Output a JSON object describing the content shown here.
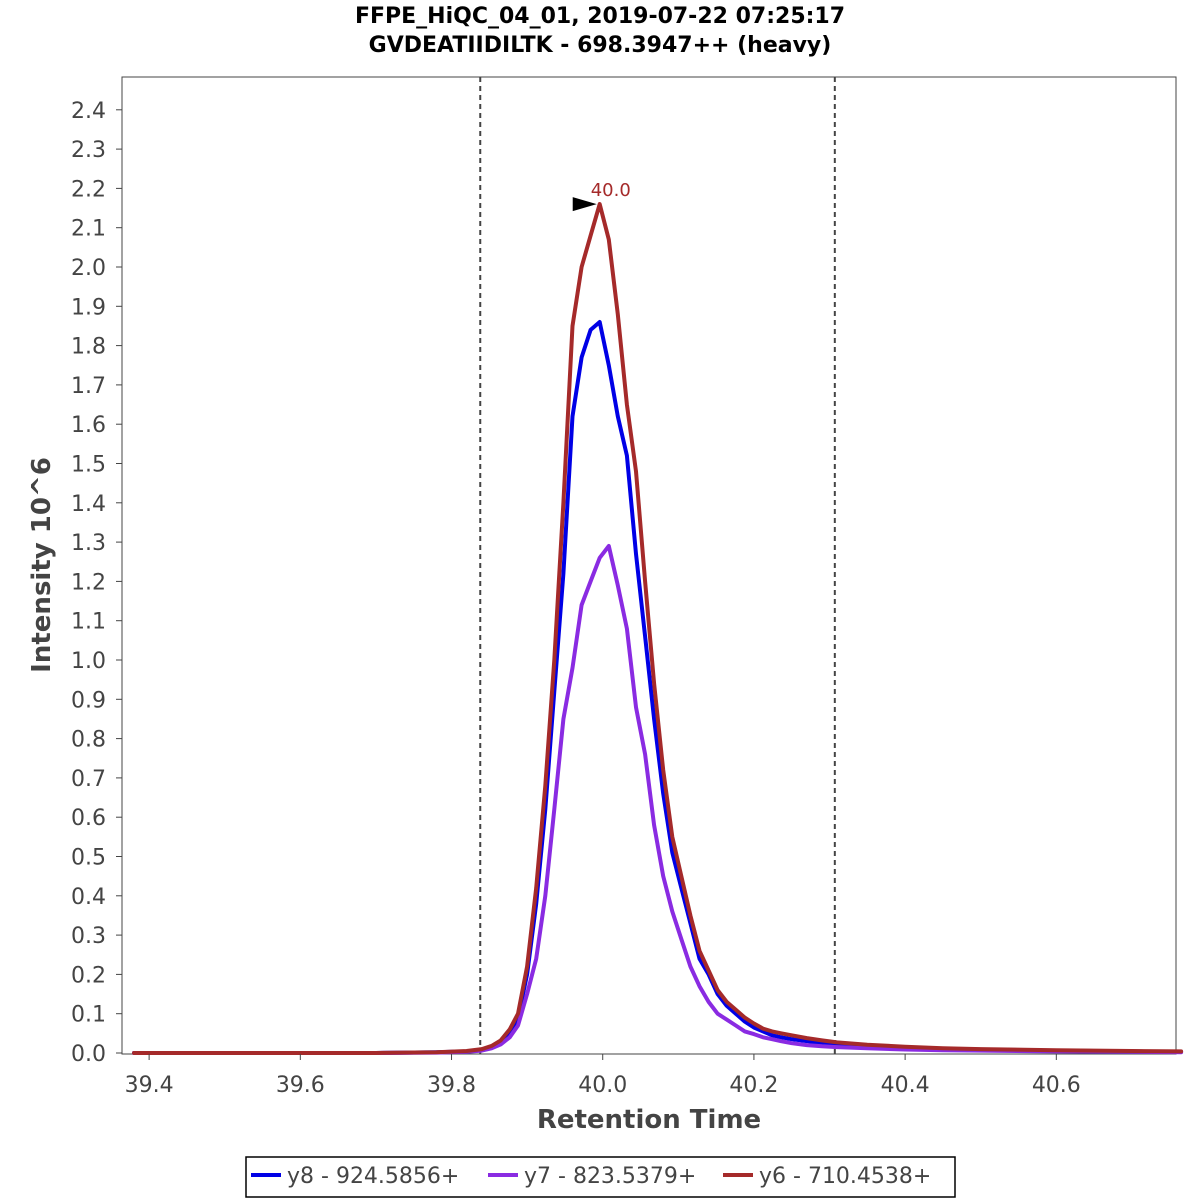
{
  "chart_data": {
    "type": "line",
    "title": "FFPE_HiQC_04_01, 2019-07-22 07:25:17",
    "subtitle": "GVDEATIIDILTK - 698.3947++ (heavy)",
    "xlabel": "Retention Time",
    "ylabel": "Intensity 10^6",
    "xlim": [
      39.38,
      40.765
    ],
    "ylim": [
      0.0,
      2.5
    ],
    "x_ticks": [
      "39.4",
      "39.6",
      "39.8",
      "40.0",
      "40.2",
      "40.4",
      "40.6"
    ],
    "x_tick_values": [
      39.4,
      39.6,
      39.8,
      40.0,
      40.2,
      40.4,
      40.6
    ],
    "y_ticks": [
      "0.0",
      "0.1",
      "0.2",
      "0.3",
      "0.4",
      "0.5",
      "0.6",
      "0.7",
      "0.8",
      "0.9",
      "1.0",
      "1.1",
      "1.2",
      "1.3",
      "1.4",
      "1.5",
      "1.6",
      "1.7",
      "1.8",
      "1.9",
      "2.0",
      "2.1",
      "2.2",
      "2.3",
      "2.4"
    ],
    "y_tick_values": [
      0.0,
      0.1,
      0.2,
      0.3,
      0.4,
      0.5,
      0.6,
      0.7,
      0.8,
      0.9,
      1.0,
      1.1,
      1.2,
      1.3,
      1.4,
      1.5,
      1.6,
      1.7,
      1.8,
      1.9,
      2.0,
      2.1,
      2.2,
      2.3,
      2.4
    ],
    "grid": false,
    "legend_position": "bottom",
    "boundaries": [
      39.838,
      40.307
    ],
    "annotation": {
      "text": "40.0",
      "x": 40.0,
      "y": 2.16,
      "color": "#a52a2a"
    },
    "series": [
      {
        "name": "y8 - 924.5856+",
        "color": "#0000e6",
        "x": [
          39.38,
          39.5,
          39.6,
          39.7,
          39.78,
          39.82,
          39.84,
          39.853,
          39.865,
          39.877,
          39.888,
          39.9,
          39.912,
          39.924,
          39.936,
          39.948,
          39.96,
          39.972,
          39.984,
          39.996,
          40.008,
          40.02,
          40.032,
          40.044,
          40.056,
          40.068,
          40.08,
          40.092,
          40.104,
          40.116,
          40.128,
          40.14,
          40.152,
          40.164,
          40.176,
          40.188,
          40.2,
          40.212,
          40.224,
          40.236,
          40.25,
          40.27,
          40.29,
          40.31,
          40.35,
          40.4,
          40.45,
          40.5,
          40.6,
          40.7,
          40.765
        ],
        "y": [
          0.0,
          0.0,
          0.0,
          0.0,
          0.002,
          0.004,
          0.008,
          0.015,
          0.028,
          0.05,
          0.09,
          0.2,
          0.38,
          0.62,
          0.92,
          1.22,
          1.62,
          1.77,
          1.84,
          1.86,
          1.75,
          1.62,
          1.52,
          1.27,
          1.06,
          0.85,
          0.66,
          0.51,
          0.42,
          0.33,
          0.24,
          0.2,
          0.15,
          0.12,
          0.1,
          0.08,
          0.065,
          0.055,
          0.045,
          0.04,
          0.035,
          0.03,
          0.025,
          0.022,
          0.018,
          0.014,
          0.011,
          0.009,
          0.006,
          0.004,
          0.003
        ]
      },
      {
        "name": "y7 - 823.5379+",
        "color": "#8a2be2",
        "x": [
          39.38,
          39.5,
          39.6,
          39.7,
          39.78,
          39.82,
          39.84,
          39.853,
          39.865,
          39.877,
          39.888,
          39.9,
          39.912,
          39.924,
          39.936,
          39.948,
          39.96,
          39.972,
          39.984,
          39.996,
          40.008,
          40.02,
          40.032,
          40.044,
          40.056,
          40.068,
          40.08,
          40.092,
          40.104,
          40.116,
          40.128,
          40.14,
          40.152,
          40.164,
          40.176,
          40.188,
          40.2,
          40.212,
          40.224,
          40.236,
          40.25,
          40.27,
          40.29,
          40.31,
          40.35,
          40.4,
          40.45,
          40.5,
          40.6,
          40.7,
          40.765
        ],
        "y": [
          0.0,
          0.0,
          0.0,
          0.0,
          0.001,
          0.003,
          0.006,
          0.012,
          0.022,
          0.04,
          0.07,
          0.15,
          0.24,
          0.4,
          0.62,
          0.85,
          0.98,
          1.14,
          1.2,
          1.26,
          1.29,
          1.19,
          1.08,
          0.88,
          0.76,
          0.58,
          0.45,
          0.36,
          0.29,
          0.22,
          0.17,
          0.13,
          0.1,
          0.085,
          0.07,
          0.055,
          0.048,
          0.04,
          0.035,
          0.03,
          0.025,
          0.02,
          0.017,
          0.015,
          0.012,
          0.009,
          0.007,
          0.006,
          0.004,
          0.003,
          0.002
        ]
      },
      {
        "name": "y6 - 710.4538+",
        "color": "#a52a2a",
        "x": [
          39.38,
          39.5,
          39.6,
          39.7,
          39.78,
          39.82,
          39.84,
          39.853,
          39.865,
          39.877,
          39.888,
          39.9,
          39.912,
          39.924,
          39.936,
          39.948,
          39.96,
          39.972,
          39.984,
          39.996,
          40.008,
          40.02,
          40.032,
          40.044,
          40.056,
          40.068,
          40.08,
          40.092,
          40.104,
          40.116,
          40.128,
          40.14,
          40.152,
          40.164,
          40.176,
          40.188,
          40.2,
          40.212,
          40.224,
          40.236,
          40.25,
          40.27,
          40.29,
          40.31,
          40.35,
          40.4,
          40.45,
          40.5,
          40.6,
          40.7,
          40.765
        ],
        "y": [
          0.0,
          0.0,
          0.0,
          0.0,
          0.002,
          0.005,
          0.01,
          0.018,
          0.032,
          0.06,
          0.1,
          0.22,
          0.42,
          0.68,
          1.0,
          1.4,
          1.85,
          2.0,
          2.08,
          2.16,
          2.07,
          1.88,
          1.65,
          1.48,
          1.2,
          0.94,
          0.72,
          0.55,
          0.45,
          0.35,
          0.26,
          0.21,
          0.16,
          0.13,
          0.11,
          0.09,
          0.075,
          0.062,
          0.055,
          0.05,
          0.045,
          0.038,
          0.032,
          0.027,
          0.021,
          0.016,
          0.012,
          0.01,
          0.007,
          0.005,
          0.004
        ]
      }
    ]
  }
}
